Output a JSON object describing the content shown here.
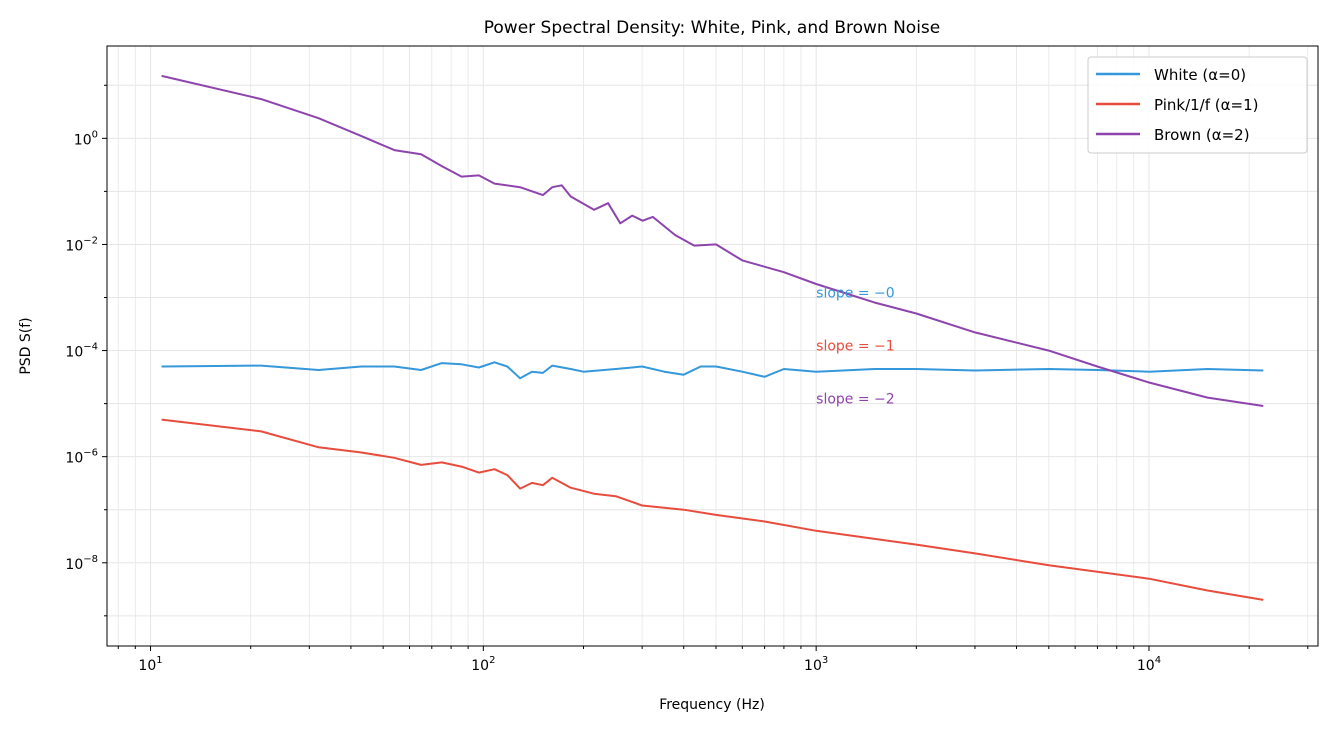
{
  "chart_data": {
    "type": "line",
    "title": "Power Spectral Density: White, Pink, and Brown Noise",
    "xlabel": "Frequency (Hz)",
    "ylabel": "PSD S(f)",
    "xscale": "log",
    "yscale": "log",
    "xlim": [
      7.4,
      32200
    ],
    "ylim": [
      2.7e-10,
      55
    ],
    "x_ticks": [
      {
        "value": 10,
        "base": "10",
        "exp": "1"
      },
      {
        "value": 100,
        "base": "10",
        "exp": "2"
      },
      {
        "value": 1000,
        "base": "10",
        "exp": "3"
      },
      {
        "value": 10000,
        "base": "10",
        "exp": "4"
      }
    ],
    "y_ticks": [
      {
        "value": 1,
        "base": "10",
        "exp": "0"
      },
      {
        "value": 0.01,
        "base": "10",
        "exp": "−2"
      },
      {
        "value": 0.0001,
        "base": "10",
        "exp": "−4"
      },
      {
        "value": 1e-06,
        "base": "10",
        "exp": "−6"
      },
      {
        "value": 1e-08,
        "base": "10",
        "exp": "−8"
      }
    ],
    "grid": true,
    "legend_position": "top-right",
    "series": [
      {
        "name": "White (α=0)",
        "color": "#3498db",
        "x": [
          10.8,
          21.5,
          32,
          43,
          54,
          65,
          75,
          86,
          97,
          108,
          118,
          129,
          140,
          151,
          161,
          183,
          200,
          250,
          300,
          350,
          400,
          450,
          500,
          600,
          700,
          800,
          1000,
          1500,
          2000,
          3000,
          5000,
          7000,
          10000,
          15000,
          22050
        ],
        "y": [
          5e-05,
          5.2e-05,
          4.3e-05,
          5e-05,
          5e-05,
          4.3e-05,
          5.8e-05,
          5.5e-05,
          4.8e-05,
          6e-05,
          5e-05,
          3e-05,
          4e-05,
          3.8e-05,
          5.2e-05,
          4.5e-05,
          4e-05,
          4.5e-05,
          5e-05,
          4e-05,
          3.5e-05,
          5e-05,
          5e-05,
          4e-05,
          3.2e-05,
          4.5e-05,
          4e-05,
          4.5e-05,
          4.5e-05,
          4.2e-05,
          4.5e-05,
          4.3e-05,
          4e-05,
          4.5e-05,
          4.2e-05
        ]
      },
      {
        "name": "Pink/1/f (α=1)",
        "color": "#e74c3c",
        "x": [
          10.8,
          21.5,
          32,
          43,
          54,
          65,
          75,
          86,
          97,
          108,
          118,
          129,
          140,
          151,
          161,
          183,
          215,
          250,
          300,
          400,
          500,
          700,
          1000,
          2000,
          3000,
          5000,
          10000,
          15000,
          22050
        ],
        "y": [
          5e-06,
          3e-06,
          1.5e-06,
          1.2e-06,
          9.5e-07,
          7e-07,
          7.8e-07,
          6.5e-07,
          5e-07,
          5.8e-07,
          4.5e-07,
          2.5e-07,
          3.2e-07,
          2.9e-07,
          4e-07,
          2.6e-07,
          2e-07,
          1.8e-07,
          1.2e-07,
          1e-07,
          8e-08,
          6e-08,
          4e-08,
          2.2e-08,
          1.5e-08,
          9e-09,
          5e-09,
          3e-09,
          2e-09
        ]
      },
      {
        "name": "Brown (α=2)",
        "color": "#8e44ad",
        "x": [
          10.8,
          21.5,
          32,
          43,
          54,
          65,
          75,
          86,
          97,
          108,
          129,
          151,
          161,
          172,
          183,
          215,
          237,
          258,
          280,
          301,
          323,
          377,
          430,
          500,
          600,
          800,
          1000,
          1500,
          2000,
          3000,
          5000,
          7000,
          10000,
          15000,
          22050
        ],
        "y": [
          15,
          5.5,
          2.4,
          1.1,
          0.6,
          0.5,
          0.3,
          0.19,
          0.2,
          0.14,
          0.12,
          0.085,
          0.12,
          0.13,
          0.08,
          0.045,
          0.06,
          0.025,
          0.035,
          0.028,
          0.033,
          0.015,
          0.0095,
          0.01,
          0.005,
          0.003,
          0.0018,
          0.0008,
          0.0005,
          0.00022,
          0.0001,
          5e-05,
          2.5e-05,
          1.3e-05,
          9e-06
        ]
      }
    ],
    "annotations": [
      {
        "text": "slope = −0",
        "x": 1000,
        "y": 0.001,
        "color": "#3498db"
      },
      {
        "text": "slope = −1",
        "x": 1000,
        "y": 0.0001,
        "color": "#e74c3c"
      },
      {
        "text": "slope = −2",
        "x": 1000,
        "y": 1e-05,
        "color": "#8e44ad"
      }
    ]
  }
}
